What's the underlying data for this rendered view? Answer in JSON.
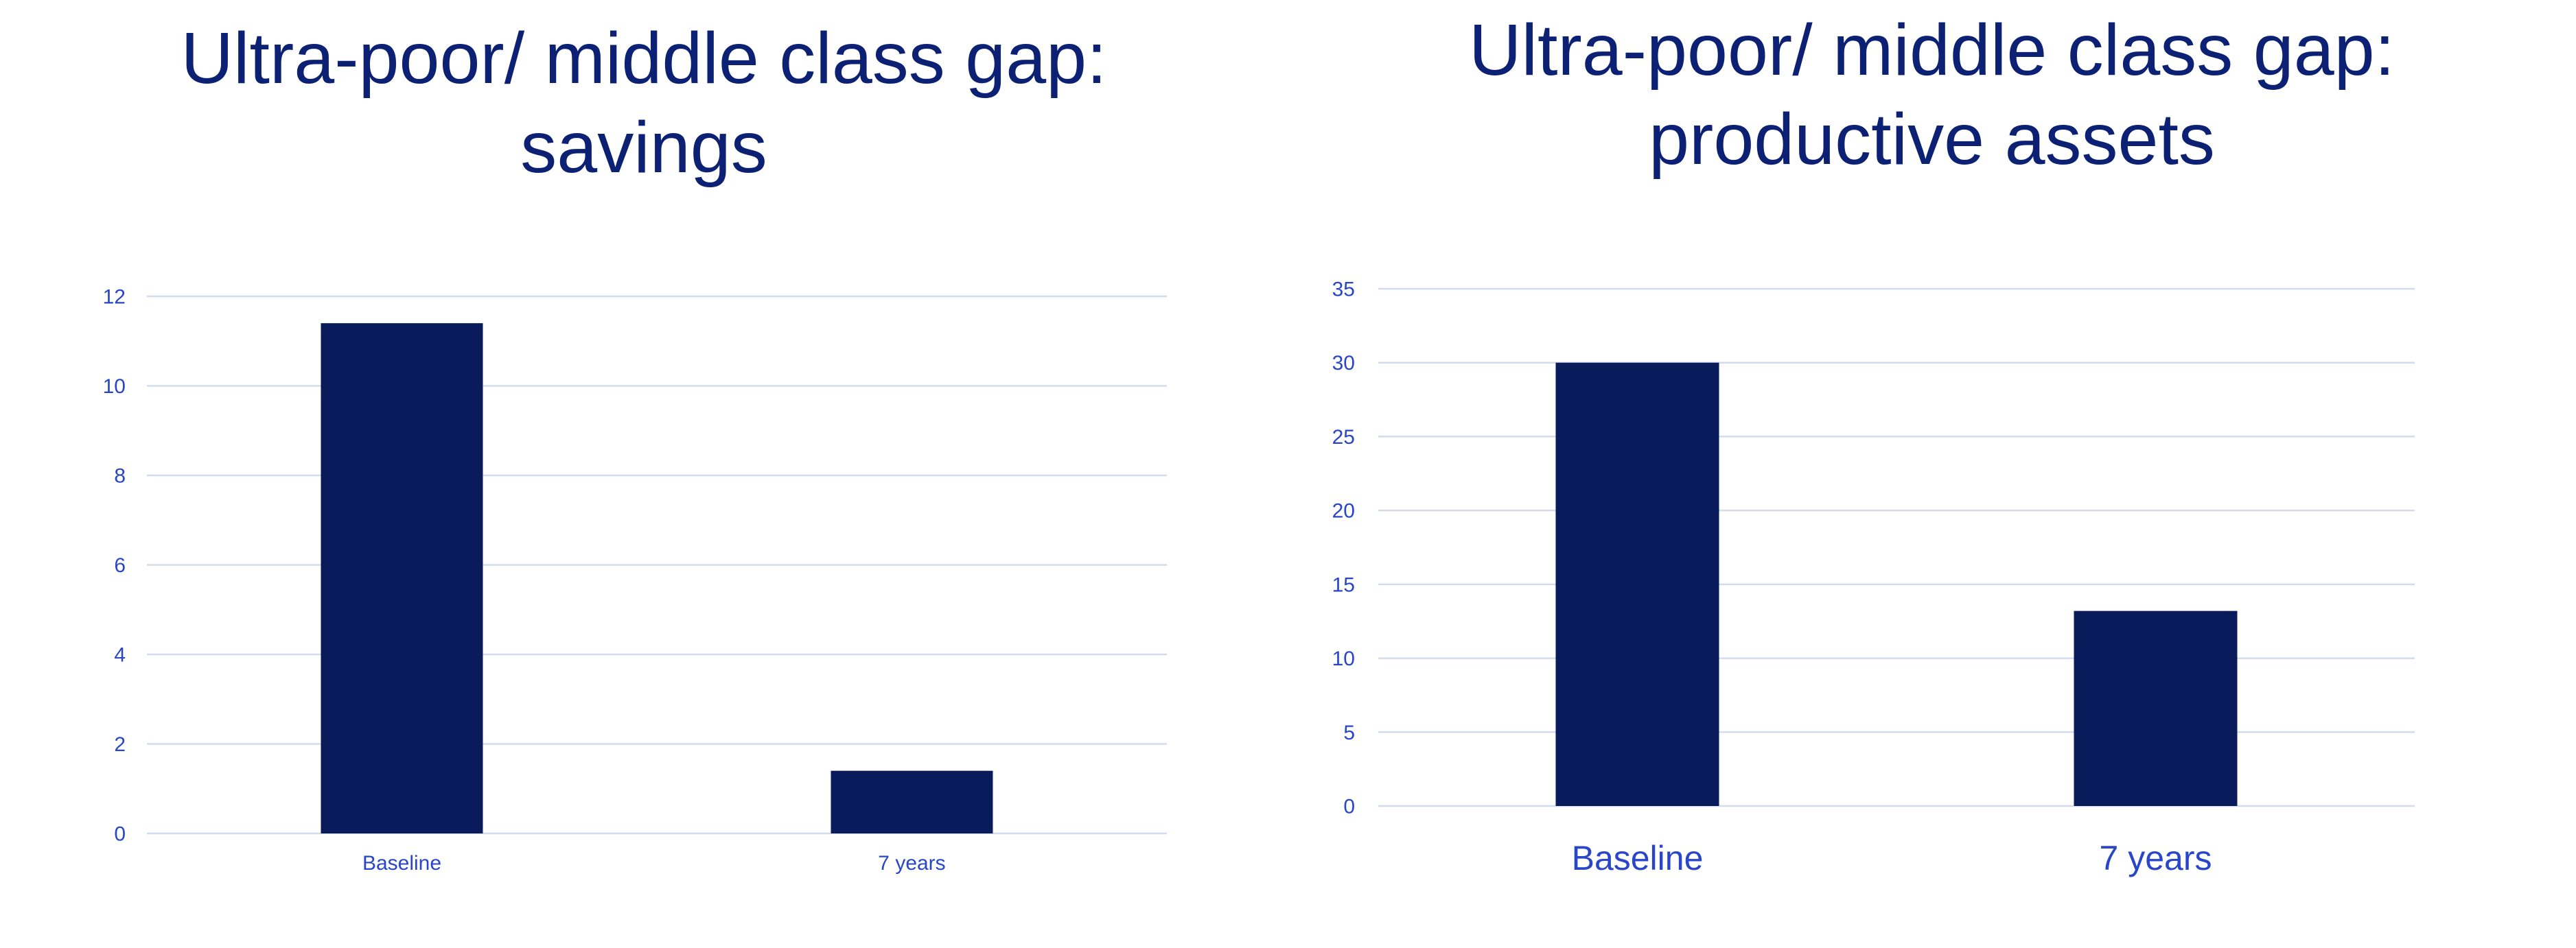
{
  "colors": {
    "title": "#0c2074",
    "bar": "#0a1b5c",
    "grid": "#d3dcee",
    "tick_label": "#2946c9"
  },
  "chart_data": [
    {
      "type": "bar",
      "title_lines": [
        "Ultra-poor/ middle class gap:",
        "savings"
      ],
      "categories": [
        "Baseline",
        "7 years"
      ],
      "values": [
        11.4,
        1.4
      ],
      "ylim": [
        0,
        12
      ],
      "yticks": [
        "0",
        "2",
        "4",
        "6",
        "8",
        "10",
        "12"
      ],
      "ytick_values": [
        0,
        2,
        4,
        6,
        8,
        10,
        12
      ],
      "xlabel": "",
      "ylabel": "",
      "grid": true,
      "legend": "none"
    },
    {
      "type": "bar",
      "title_lines": [
        "Ultra-poor/ middle class gap:",
        "productive assets"
      ],
      "categories": [
        "Baseline",
        "7 years"
      ],
      "values": [
        30,
        13.2
      ],
      "ylim": [
        0,
        35
      ],
      "yticks": [
        "0",
        "5",
        "10",
        "15",
        "20",
        "25",
        "30",
        "35"
      ],
      "ytick_values": [
        0,
        5,
        10,
        15,
        20,
        25,
        30,
        35
      ],
      "xlabel": "",
      "ylabel": "",
      "grid": true,
      "legend": "none"
    }
  ]
}
